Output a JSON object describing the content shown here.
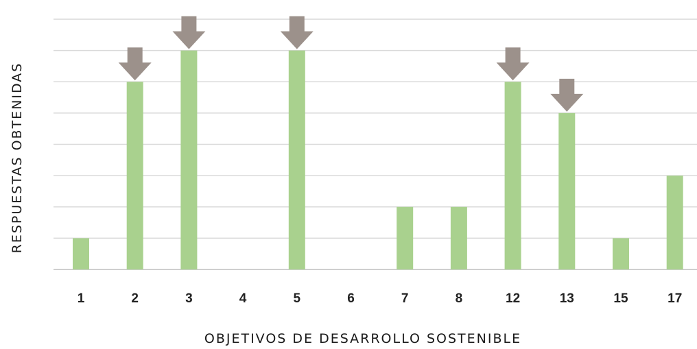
{
  "chart_data": {
    "type": "bar",
    "title": "",
    "xlabel": "OBJETIVOS DE DESARROLLO SOSTENIBLE",
    "ylabel": "RESPUESTAS OBTENIDAS",
    "categories": [
      "1",
      "2",
      "3",
      "4",
      "5",
      "6",
      "7",
      "8",
      "12",
      "13",
      "15",
      "17"
    ],
    "values": [
      1,
      6,
      7,
      0,
      7,
      0,
      2,
      2,
      6,
      5,
      1,
      3
    ],
    "ylim": [
      0,
      8
    ],
    "grid": true,
    "show_y_tick_labels": false,
    "highlighted_categories": [
      "2",
      "3",
      "5",
      "12",
      "13"
    ],
    "highlight_marker": "down-arrow-icon",
    "colors": {
      "bar": "#a9d18e",
      "gridline": "#d9d9d9",
      "arrow": "#9c918b"
    }
  }
}
